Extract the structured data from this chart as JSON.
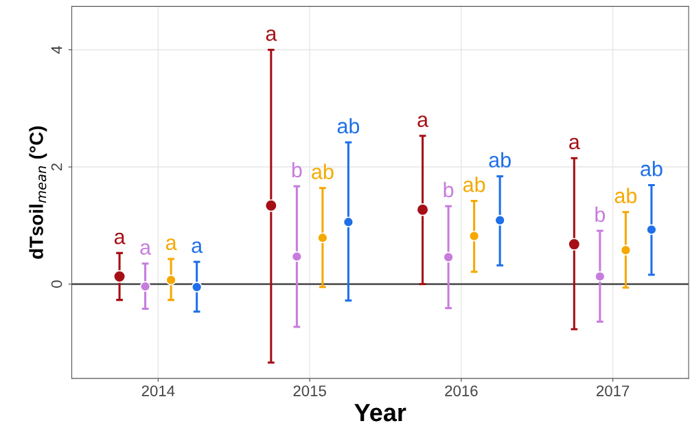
{
  "chart_data": {
    "type": "scatter",
    "xlabel": "Year",
    "ylabel": "dTsoil$_{mean}$ (°C)",
    "categories": [
      "2014",
      "2015",
      "2016",
      "2017"
    ],
    "series": [
      {
        "color": "#a50f15",
        "values": [
          0.13,
          1.34,
          1.27,
          0.68
        ],
        "errors": [
          [
            -0.27,
            0.53
          ],
          [
            -1.34,
            4.0
          ],
          [
            0.0,
            2.53
          ],
          [
            -0.77,
            2.15
          ]
        ]
      },
      {
        "color": "#c77cdd",
        "values": [
          -0.04,
          0.47,
          0.46,
          0.13
        ],
        "errors": [
          [
            -0.42,
            0.35
          ],
          [
            -0.73,
            1.67
          ],
          [
            -0.41,
            1.33
          ],
          [
            -0.64,
            0.91
          ]
        ]
      },
      {
        "color": "#f5a800",
        "values": [
          0.07,
          0.79,
          0.82,
          0.58
        ],
        "errors": [
          [
            -0.27,
            0.43
          ],
          [
            -0.05,
            1.64
          ],
          [
            0.21,
            1.42
          ],
          [
            -0.06,
            1.23
          ]
        ]
      },
      {
        "color": "#1f6fe8",
        "values": [
          -0.05,
          1.06,
          1.09,
          0.93
        ],
        "errors": [
          [
            -0.47,
            0.38
          ],
          [
            -0.28,
            2.42
          ],
          [
            0.32,
            1.84
          ],
          [
            0.16,
            1.69
          ]
        ]
      }
    ],
    "annotations": [
      "a",
      "a",
      "a",
      "a",
      "a",
      "b",
      "b",
      "b",
      "a",
      "ab",
      "ab",
      "ab",
      "a",
      "ab",
      "ab",
      "ab"
    ],
    "ylim": [
      -1.61,
      4.74
    ],
    "yticks": [
      0,
      2,
      4
    ],
    "grid": true,
    "marker": "circle",
    "ref_lines": [
      {
        "axis": "y",
        "value": 0,
        "color": "#555555"
      }
    ]
  }
}
